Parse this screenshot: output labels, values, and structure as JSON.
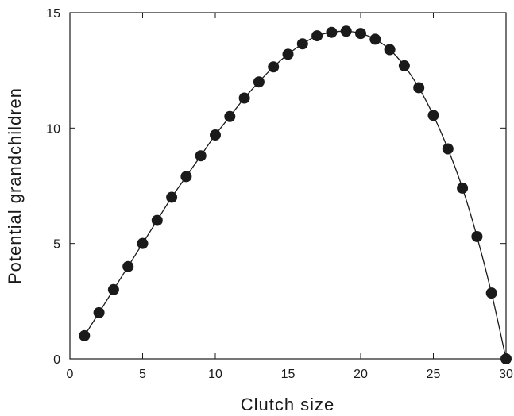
{
  "chart_data": {
    "type": "scatter",
    "title": "",
    "xlabel": "Clutch size",
    "ylabel": "Potential grandchildren",
    "xlim": [
      0,
      30
    ],
    "ylim": [
      0,
      15
    ],
    "x_ticks": [
      0,
      5,
      10,
      15,
      20,
      25,
      30
    ],
    "y_ticks": [
      0,
      5,
      10,
      15
    ],
    "grid": false,
    "series": [
      {
        "line": true,
        "marker": "filled-circle",
        "color": "#1a1a1a",
        "x": [
          1,
          2,
          3,
          4,
          5,
          6,
          7,
          8,
          9,
          10,
          11,
          12,
          13,
          14,
          15,
          16,
          17,
          18,
          19,
          20,
          21,
          22,
          23,
          24,
          25,
          26,
          27,
          28,
          29,
          30
        ],
        "y": [
          1.0,
          2.0,
          3.0,
          4.0,
          5.0,
          6.0,
          7.0,
          7.9,
          8.8,
          9.7,
          10.5,
          11.3,
          12.0,
          12.65,
          13.2,
          13.65,
          14.0,
          14.15,
          14.2,
          14.1,
          13.85,
          13.4,
          12.7,
          11.75,
          10.55,
          9.1,
          7.4,
          5.3,
          2.85,
          0.0
        ]
      }
    ]
  }
}
